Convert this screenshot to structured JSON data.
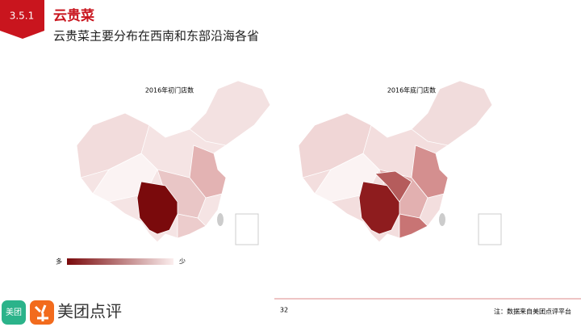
{
  "header": {
    "section": "3.5.1",
    "title": "云贵菜",
    "subtitle": "云贵菜主要分布在西南和东部沿海各省"
  },
  "maps": [
    {
      "title": "2016年初门店数"
    },
    {
      "title": "2016年底门店数"
    }
  ],
  "legend": {
    "high": "多",
    "low": "少"
  },
  "footer": {
    "page": "32",
    "note": "注：数据来自美团点评平台",
    "brand_icon": "美团",
    "brand": "美团点评"
  }
}
